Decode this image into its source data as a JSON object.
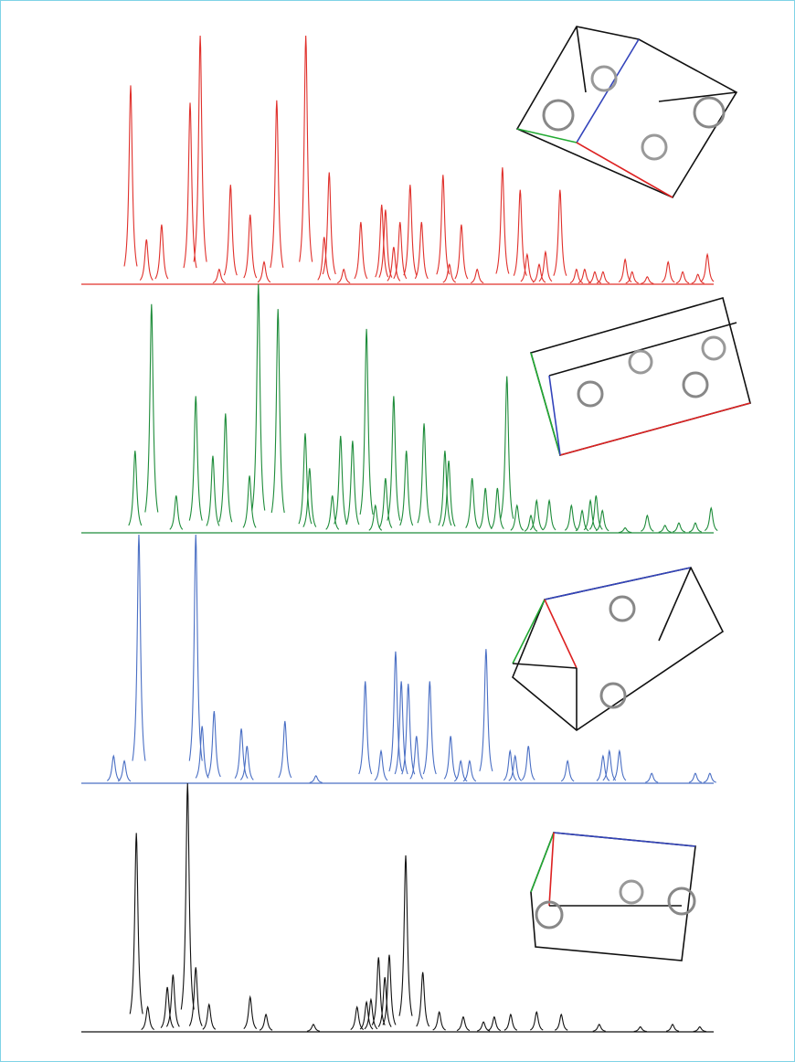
{
  "chart_data": [
    {
      "type": "spectrum",
      "color": "#e0302b",
      "xlim": [
        0,
        100
      ],
      "ylim": [
        0,
        100
      ],
      "x": [
        7.8,
        10.3,
        12.7,
        17.2,
        18.8,
        21.8,
        23.6,
        26.7,
        28.9,
        30.9,
        35.5,
        38.4,
        39.2,
        41.5,
        44.2,
        47.5,
        48.1,
        49.4,
        50.4,
        52.0,
        53.8,
        57.2,
        58.2,
        60.1,
        62.6,
        66.6,
        69.4,
        70.5,
        72.4,
        73.4,
        75.7,
        78.3,
        79.6,
        81.2,
        82.5,
        86.0,
        87.1,
        89.5,
        92.8,
        95.1,
        97.5,
        99.0
      ],
      "values": [
        80,
        18,
        24,
        73,
        100,
        6,
        40,
        28,
        9,
        74,
        100,
        19,
        45,
        6,
        25,
        32,
        30,
        15,
        25,
        40,
        25,
        44,
        8,
        24,
        6,
        47,
        38,
        12,
        8,
        13,
        38,
        6,
        6,
        5,
        5,
        10,
        5,
        3,
        9,
        5,
        4,
        12
      ]
    },
    {
      "type": "spectrum",
      "color": "#1e8c3a",
      "xlim": [
        0,
        100
      ],
      "ylim": [
        0,
        100
      ],
      "x": [
        8.5,
        11.1,
        15.0,
        18.1,
        20.8,
        22.8,
        26.6,
        28.0,
        31.1,
        35.4,
        36.1,
        39.7,
        41.0,
        42.9,
        45.1,
        46.5,
        48.1,
        49.4,
        51.4,
        54.2,
        57.5,
        58.1,
        61.8,
        63.9,
        65.8,
        67.3,
        68.9,
        71.1,
        72.0,
        74.0,
        77.5,
        79.2,
        80.5,
        81.4,
        82.4,
        86.0,
        89.5,
        92.3,
        94.5,
        97.1,
        99.6
      ],
      "values": [
        33,
        92,
        15,
        55,
        31,
        48,
        23,
        100,
        90,
        40,
        26,
        15,
        39,
        37,
        82,
        11,
        22,
        55,
        33,
        44,
        33,
        29,
        22,
        18,
        18,
        63,
        11,
        7,
        13,
        13,
        11,
        9,
        13,
        15,
        9,
        2,
        7,
        3,
        4,
        4,
        10
      ]
    },
    {
      "type": "spectrum",
      "color": "#4a6fc4",
      "xlim": [
        0,
        100
      ],
      "ylim": [
        0,
        100
      ],
      "x": [
        5.1,
        6.8,
        9.1,
        18.1,
        19.1,
        21.0,
        25.3,
        26.2,
        32.2,
        37.1,
        44.9,
        47.4,
        49.7,
        50.6,
        51.7,
        53.0,
        55.1,
        58.4,
        60.0,
        61.4,
        64.0,
        67.8,
        68.6,
        70.7,
        76.9,
        82.5,
        83.5,
        85.1,
        90.2,
        97.1,
        99.4
      ],
      "values": [
        11,
        9,
        100,
        100,
        23,
        29,
        22,
        15,
        25,
        3,
        41,
        13,
        53,
        41,
        40,
        19,
        41,
        19,
        9,
        9,
        54,
        13,
        11,
        15,
        9,
        11,
        13,
        13,
        4,
        4,
        4
      ]
    },
    {
      "type": "spectrum",
      "color": "#111111",
      "xlim": [
        0,
        100
      ],
      "ylim": [
        0,
        100
      ],
      "x": [
        8.7,
        10.5,
        13.6,
        14.5,
        16.8,
        18.1,
        20.2,
        26.7,
        29.2,
        36.7,
        43.6,
        45.1,
        45.8,
        47.0,
        48.0,
        48.7,
        51.3,
        54.0,
        56.6,
        60.4,
        63.6,
        65.3,
        67.9,
        72.0,
        75.9,
        81.9,
        88.4,
        93.5,
        97.8
      ],
      "values": [
        80,
        10,
        18,
        23,
        100,
        26,
        11,
        14,
        7,
        3,
        10,
        12,
        13,
        30,
        22,
        31,
        71,
        24,
        8,
        6,
        4,
        6,
        7,
        8,
        7,
        3,
        2,
        3,
        2
      ]
    }
  ]
}
